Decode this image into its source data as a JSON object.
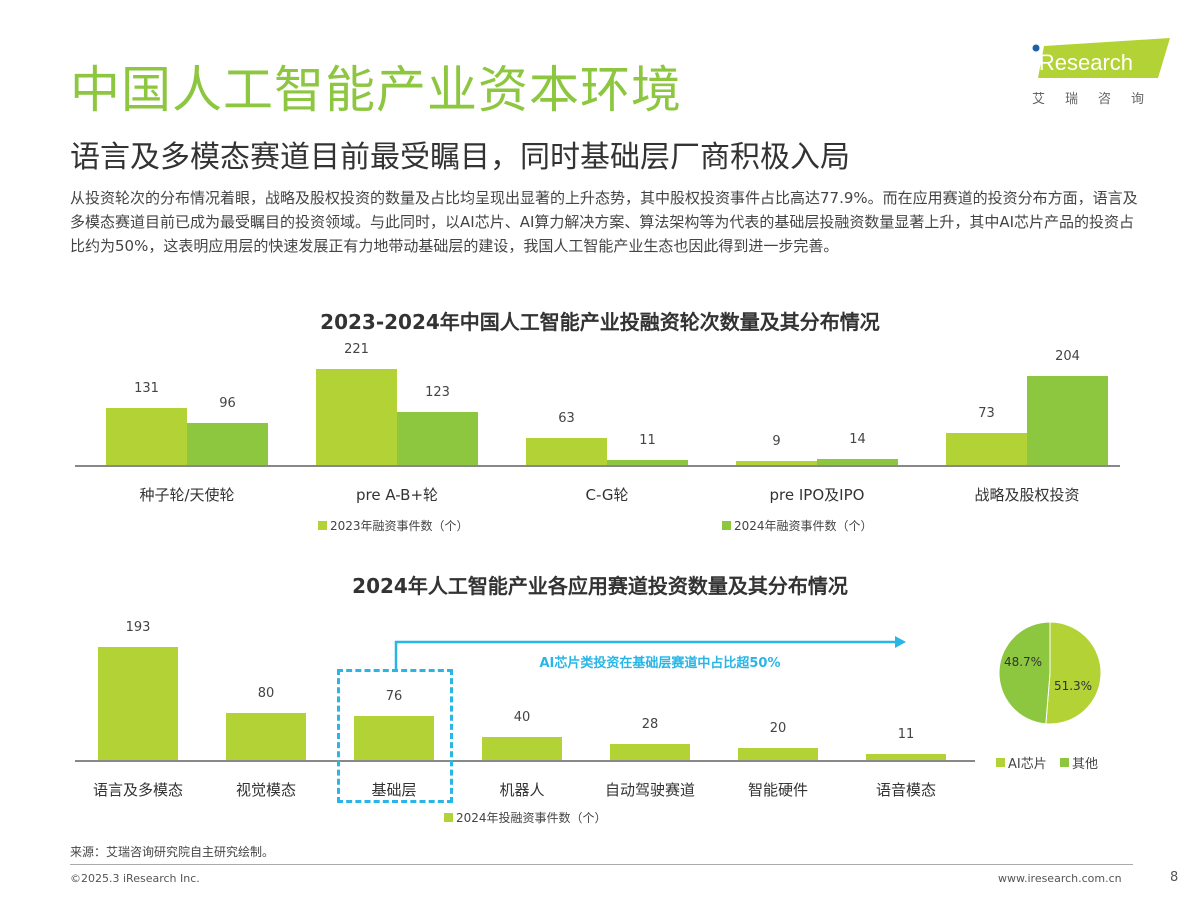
{
  "header": {
    "title": "中国人工智能产业资本环境",
    "subtitle": "语言及多模态赛道目前最受瞩目，同时基础层厂商积极入局",
    "body": "从投资轮次的分布情况着眼，战略及股权投资的数量及占比均呈现出显著的上升态势，其中股权投资事件占比高达77.9%。而在应用赛道的投资分布方面，语言及多模态赛道目前已成为最受瞩目的投资领域。与此同时，以AI芯片、AI算力解决方案、算法架构等为代表的基础层投融资数量显著上升，其中AI芯片产品的投资占比约为50%，这表明应用层的快速发展正有力地带动基础层的建设，我国人工智能产业生态也因此得到进一步完善。"
  },
  "logo": {
    "text": "iResearch",
    "cn": "艾瑞咨询"
  },
  "colors": {
    "light_green": "#b2d235",
    "green": "#8dc63f",
    "title_green": "#8dc63f",
    "annotation_blue": "#29b6e6"
  },
  "chart_data": [
    {
      "type": "bar",
      "title": "2023-2024年中国人工智能产业投融资轮次数量及其分布情况",
      "categories": [
        "种子轮/天使轮",
        "pre A-B+轮",
        "C-G轮",
        "pre IPO及IPO",
        "战略及股权投资"
      ],
      "series": [
        {
          "name": "2023年融资事件数（个）",
          "values": [
            131,
            221,
            63,
            9,
            73
          ],
          "color": "#b2d235"
        },
        {
          "name": "2024年融资事件数（个）",
          "values": [
            96,
            123,
            11,
            14,
            204
          ],
          "color": "#8dc63f"
        }
      ],
      "legend": "bottom"
    },
    {
      "type": "bar",
      "title": "2024年人工智能产业各应用赛道投资数量及其分布情况",
      "categories": [
        "语言及多模态",
        "视觉模态",
        "基础层",
        "机器人",
        "自动驾驶赛道",
        "智能硬件",
        "语音模态"
      ],
      "series": [
        {
          "name": "2024年投融资事件数（个）",
          "values": [
            193,
            80,
            76,
            40,
            28,
            20,
            11
          ],
          "color": "#b2d235"
        }
      ],
      "legend": "bottom",
      "annotation": "AI芯片类投资在基础层赛道中占比超50%"
    },
    {
      "type": "pie",
      "slices": [
        {
          "name": "AI芯片",
          "value": 51.3,
          "label": "51.3%",
          "color": "#b2d235"
        },
        {
          "name": "其他",
          "value": 48.7,
          "label": "48.7%",
          "color": "#8dc63f"
        }
      ],
      "legend": "bottom"
    }
  ],
  "footer": {
    "source": "来源：艾瑞咨询研究院自主研究绘制。",
    "copyright": "©2025.3 iResearch Inc.",
    "url": "www.iresearch.com.cn",
    "page": "8"
  }
}
